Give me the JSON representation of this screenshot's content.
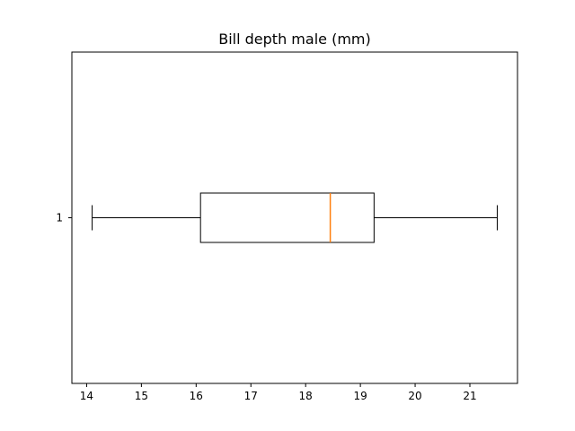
{
  "chart_data": {
    "type": "boxplot",
    "orientation": "horizontal",
    "title": "Bill depth male (mm)",
    "xlabel": "",
    "ylabel": "",
    "xlim": [
      13.73,
      21.87
    ],
    "x_ticks": [
      14,
      15,
      16,
      17,
      18,
      19,
      20,
      21
    ],
    "y_ticks": [
      "1"
    ],
    "grid": false,
    "series": [
      {
        "category": "1",
        "whisker_low": 14.1,
        "q1": 16.08,
        "median": 18.45,
        "q3": 19.25,
        "whisker_high": 21.5
      }
    ],
    "colors": {
      "box": "#000000",
      "median": "#ff7f0e",
      "whisker": "#000000"
    }
  }
}
